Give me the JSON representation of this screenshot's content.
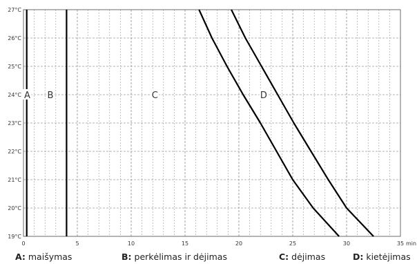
{
  "chart_data": {
    "type": "line",
    "xlabel_unit": "min.",
    "ylabel_unit": "°C",
    "xlim": [
      0,
      35
    ],
    "ylim": [
      19,
      27
    ],
    "x_ticks": [
      0,
      5,
      10,
      15,
      20,
      25,
      30,
      35
    ],
    "x_tick_labels": [
      "0",
      "5",
      "10",
      "15",
      "20",
      "25",
      "30",
      "35"
    ],
    "y_ticks": [
      19,
      20,
      21,
      22,
      23,
      24,
      25,
      26,
      27
    ],
    "y_tick_labels": [
      "19°C",
      "20°C",
      "21°C",
      "22°C",
      "23°C",
      "24°C",
      "25°C",
      "26°C",
      "27°C"
    ],
    "grid": true,
    "region_labels": [
      {
        "text": "A",
        "x": 0.35,
        "y": 24
      },
      {
        "text": "B",
        "x": 2.5,
        "y": 24
      },
      {
        "text": "C",
        "x": 12.2,
        "y": 24
      },
      {
        "text": "D",
        "x": 22.3,
        "y": 24
      }
    ],
    "series": [
      {
        "values": [
          [
            0.3,
            19
          ],
          [
            0.3,
            27
          ]
        ]
      },
      {
        "values": [
          [
            4.0,
            19
          ],
          [
            4.0,
            27
          ]
        ]
      },
      {
        "values": [
          [
            16.3,
            27
          ],
          [
            17.5,
            26
          ],
          [
            18.9,
            25
          ],
          [
            20.4,
            24
          ],
          [
            22.0,
            23
          ],
          [
            23.5,
            22
          ],
          [
            25.0,
            21
          ],
          [
            26.9,
            20
          ],
          [
            29.3,
            19
          ]
        ]
      },
      {
        "values": [
          [
            19.3,
            27
          ],
          [
            20.6,
            26
          ],
          [
            22.1,
            25
          ],
          [
            23.6,
            24
          ],
          [
            25.1,
            23
          ],
          [
            26.7,
            22
          ],
          [
            28.3,
            21
          ],
          [
            30.0,
            20
          ],
          [
            32.5,
            19
          ]
        ]
      }
    ],
    "colors": {
      "lines": "#000000",
      "grid": "#9a9a9a",
      "text": "#333333"
    }
  },
  "legend": [
    {
      "key": "A:",
      "text": " maišymas"
    },
    {
      "key": "B:",
      "text": " perkėlimas ir dėjimas"
    },
    {
      "key": "C:",
      "text": " dėjimas"
    },
    {
      "key": "D:",
      "text": " kietėjimas"
    }
  ]
}
